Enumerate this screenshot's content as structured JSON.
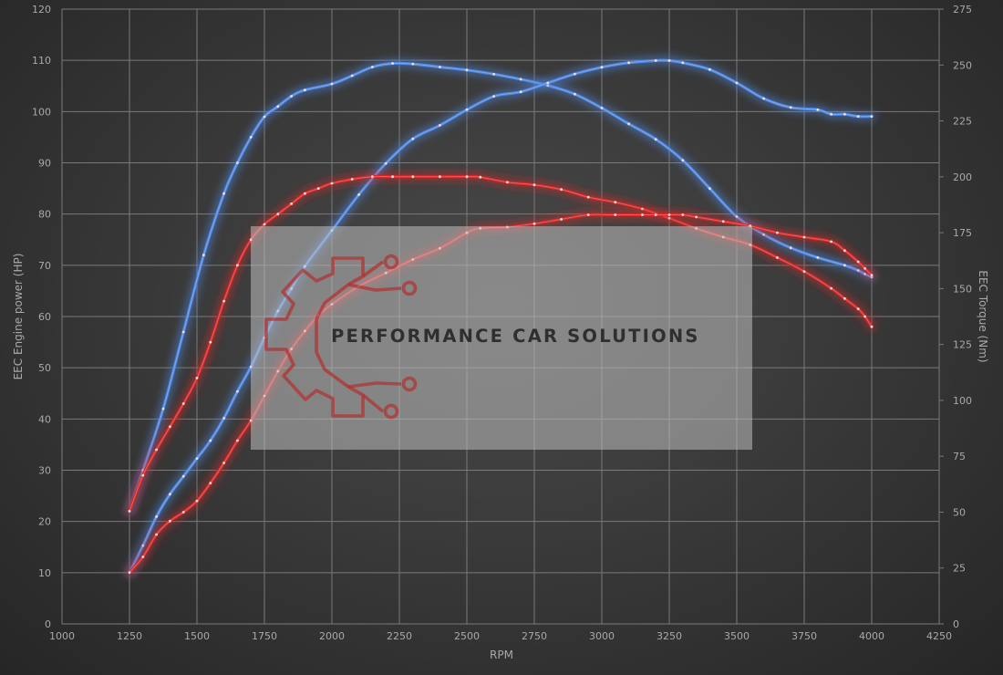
{
  "watermark": {
    "text": "PERFORMANCE CAR SOLUTIONS",
    "color": "#b03030"
  },
  "chart_data": {
    "type": "line",
    "xlabel": "RPM",
    "ylabel_left": "EEC Engine power (HP)",
    "ylabel_right": "EEC Torque (Nm)",
    "xlim": [
      1000,
      4250
    ],
    "x_ticks": [
      1000,
      1250,
      1500,
      1750,
      2000,
      2250,
      2500,
      2750,
      3000,
      3250,
      3500,
      3750,
      4000,
      4250
    ],
    "ylim_left": [
      0,
      120
    ],
    "y_ticks_left": [
      0,
      10,
      20,
      30,
      40,
      50,
      60,
      70,
      80,
      90,
      100,
      110,
      120
    ],
    "ylim_right": [
      0,
      275
    ],
    "y_ticks_right": [
      0,
      25,
      50,
      75,
      100,
      125,
      150,
      175,
      200,
      225,
      250,
      275
    ],
    "grid": true,
    "series": [
      {
        "axis": "left",
        "color": "#4f86e0",
        "x": [
          1250,
          1300,
          1375,
          1450,
          1525,
          1600,
          1650,
          1700,
          1750,
          1800,
          1850,
          1900,
          2000,
          2075,
          2150,
          2225,
          2300,
          2400,
          2500,
          2600,
          2700,
          2800,
          2900,
          3000,
          3100,
          3200,
          3300,
          3400,
          3500,
          3600,
          3700,
          3800,
          3900,
          3950,
          3975,
          4000
        ],
        "y": [
          22,
          30,
          42,
          57,
          72,
          84,
          90,
          95,
          99,
          101,
          103,
          104.2,
          105.4,
          107,
          108.7,
          109.4,
          109.3,
          108.7,
          108.1,
          107.3,
          106.3,
          105.1,
          103.4,
          100.7,
          97.6,
          94.6,
          90.5,
          85,
          79.5,
          76,
          73.4,
          71.5,
          70,
          69,
          68.3,
          67.7
        ]
      },
      {
        "axis": "right",
        "color": "#4f86e0",
        "x": [
          1250,
          1300,
          1350,
          1400,
          1450,
          1500,
          1550,
          1600,
          1650,
          1700,
          1750,
          1800,
          1850,
          1900,
          2000,
          2100,
          2200,
          2300,
          2400,
          2500,
          2600,
          2700,
          2800,
          2900,
          3000,
          3100,
          3200,
          3250,
          3300,
          3400,
          3500,
          3600,
          3700,
          3800,
          3850,
          3900,
          3950,
          4000
        ],
        "y": [
          23,
          35,
          48,
          58,
          66,
          74,
          82,
          92,
          104,
          115,
          128,
          140,
          150,
          160,
          176,
          192,
          206,
          217,
          223,
          230,
          236,
          238,
          242,
          246,
          249,
          251,
          252,
          252,
          251,
          248,
          242,
          235,
          231,
          230,
          228,
          228,
          227,
          227
        ]
      },
      {
        "axis": "left",
        "color": "#d62828",
        "x": [
          1250,
          1300,
          1350,
          1400,
          1450,
          1500,
          1550,
          1600,
          1650,
          1700,
          1750,
          1800,
          1850,
          1900,
          1950,
          2000,
          2075,
          2150,
          2225,
          2300,
          2400,
          2500,
          2550,
          2650,
          2750,
          2850,
          2950,
          3050,
          3150,
          3250,
          3350,
          3450,
          3550,
          3650,
          3750,
          3850,
          3900,
          3950,
          3975,
          4000
        ],
        "y": [
          22,
          29,
          34,
          38.5,
          43,
          48,
          55,
          63,
          70,
          75,
          78,
          80,
          82,
          84,
          85,
          86,
          86.8,
          87.3,
          87.3,
          87.3,
          87.3,
          87.3,
          87.2,
          86.2,
          85.7,
          84.8,
          83.3,
          82.3,
          81,
          79.2,
          77.2,
          75.5,
          74,
          71.5,
          68.8,
          65.5,
          63.5,
          61.5,
          60,
          58
        ]
      },
      {
        "axis": "right",
        "color": "#d62828",
        "x": [
          1250,
          1300,
          1350,
          1400,
          1450,
          1500,
          1550,
          1600,
          1650,
          1700,
          1750,
          1800,
          1850,
          1900,
          1950,
          2000,
          2100,
          2200,
          2300,
          2400,
          2500,
          2550,
          2650,
          2750,
          2850,
          2950,
          3050,
          3150,
          3200,
          3250,
          3300,
          3350,
          3450,
          3550,
          3650,
          3750,
          3850,
          3900,
          3950,
          3975,
          4000
        ],
        "y": [
          23,
          30,
          40,
          46,
          50,
          55,
          63,
          72,
          82,
          91,
          102,
          113,
          123,
          131,
          138,
          143,
          151,
          157,
          163,
          168,
          175,
          177,
          177.5,
          179,
          181,
          183,
          183,
          183,
          183,
          183,
          183,
          182,
          180,
          178,
          175,
          173,
          171,
          167,
          162,
          159,
          156
        ]
      }
    ]
  }
}
